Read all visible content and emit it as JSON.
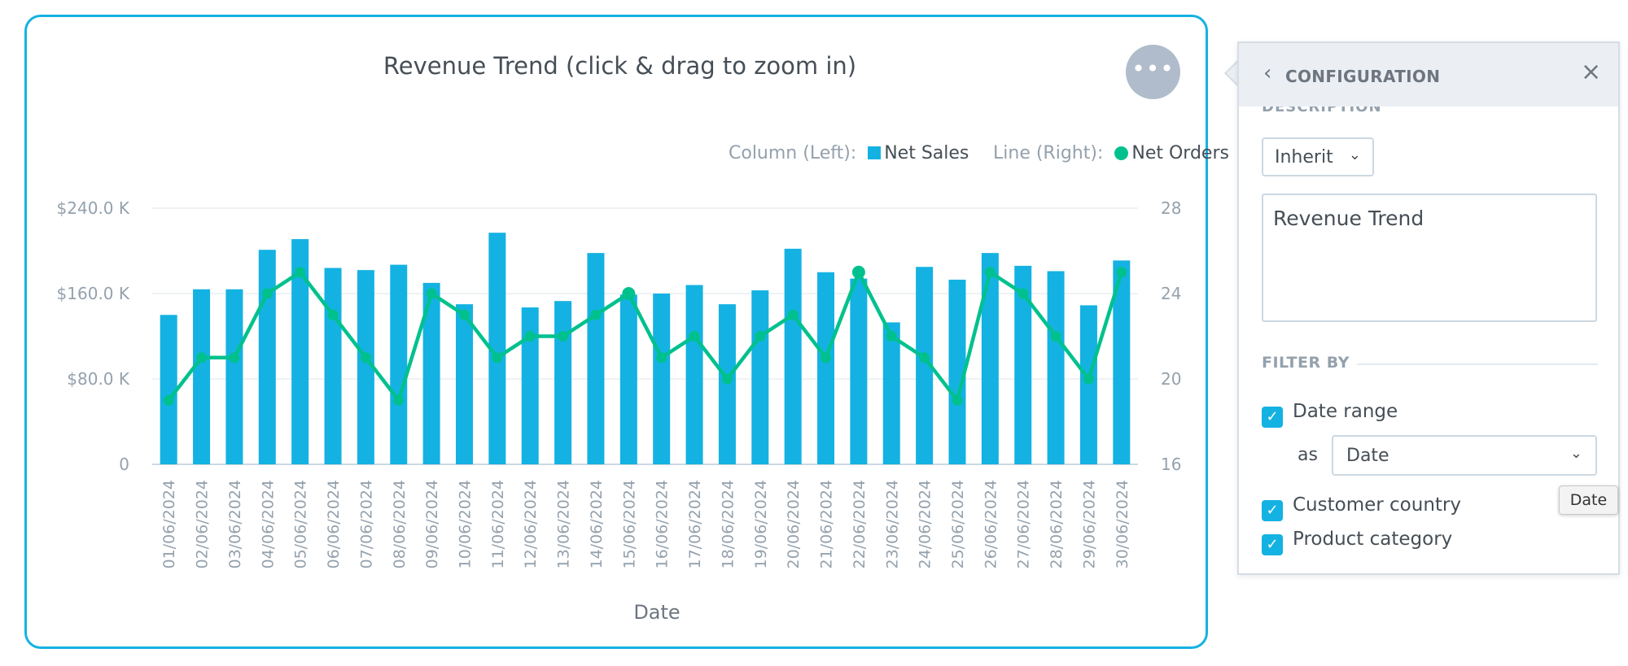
{
  "widget": {
    "title": "Revenue Trend (click & drag to zoom in)",
    "menu_icon": "ellipsis-icon",
    "legend": {
      "column_label": "Column (Left):",
      "column_series": "Net Sales",
      "line_label": "Line (Right):",
      "line_series": "Net Orders"
    },
    "colors": {
      "bar": "#14b2e2",
      "line": "#00c18d",
      "border": "#14b2e2"
    }
  },
  "chart_data": {
    "type": "bar+line",
    "title": "Revenue Trend (click & drag to zoom in)",
    "xlabel": "Date",
    "ylabel_left": "Net Sales",
    "ylabel_right": "Net Orders",
    "categories": [
      "01/06/2024",
      "02/06/2024",
      "03/06/2024",
      "04/06/2024",
      "05/06/2024",
      "06/06/2024",
      "07/06/2024",
      "08/06/2024",
      "09/06/2024",
      "10/06/2024",
      "11/06/2024",
      "12/06/2024",
      "13/06/2024",
      "14/06/2024",
      "15/06/2024",
      "16/06/2024",
      "17/06/2024",
      "18/06/2024",
      "19/06/2024",
      "20/06/2024",
      "21/06/2024",
      "22/06/2024",
      "23/06/2024",
      "24/06/2024",
      "25/06/2024",
      "26/06/2024",
      "27/06/2024",
      "28/06/2024",
      "29/06/2024",
      "30/06/2024"
    ],
    "series": [
      {
        "name": "Net Sales",
        "type": "column",
        "axis": "left",
        "values": [
          140000,
          164000,
          164000,
          201000,
          211000,
          184000,
          182000,
          187000,
          170000,
          150000,
          217000,
          147000,
          153000,
          198000,
          159000,
          160000,
          168000,
          150000,
          163000,
          202000,
          180000,
          174000,
          133000,
          185000,
          173000,
          198000,
          186000,
          181000,
          149000,
          191000
        ]
      },
      {
        "name": "Net Orders",
        "type": "line",
        "axis": "right",
        "values": [
          19,
          21,
          21,
          24,
          25,
          23,
          21,
          19,
          24,
          23,
          21,
          22,
          22,
          23,
          24,
          21,
          22,
          20,
          22,
          23,
          21,
          25,
          22,
          21,
          19,
          25,
          24,
          22,
          20,
          25
        ]
      }
    ],
    "y_left": {
      "min": 0,
      "max": 240000,
      "ticks": [
        {
          "value": 0,
          "label": "0"
        },
        {
          "value": 80000,
          "label": "$80.0 K"
        },
        {
          "value": 160000,
          "label": "$160.0 K"
        },
        {
          "value": 240000,
          "label": "$240.0 K"
        }
      ]
    },
    "y_right": {
      "min": 16,
      "max": 28,
      "ticks": [
        {
          "value": 16,
          "label": "16"
        },
        {
          "value": 20,
          "label": "20"
        },
        {
          "value": 24,
          "label": "24"
        },
        {
          "value": 28,
          "label": "28"
        }
      ]
    },
    "highlighted_points": [
      14,
      21
    ],
    "legend_position": "top-right",
    "grid": true
  },
  "config": {
    "back_icon": "chevron-left-icon",
    "title": "CONFIGURATION",
    "close_icon": "close-icon",
    "description_heading": "DESCRIPTION",
    "inherit_label": "Inherit",
    "description_text": "Revenue Trend",
    "filter_heading": "FILTER BY",
    "filters": [
      {
        "label": "Date range",
        "checked": true
      },
      {
        "label": "Customer country",
        "checked": true
      },
      {
        "label": "Product category",
        "checked": true
      }
    ],
    "as_label": "as",
    "date_select_value": "Date",
    "tooltip": "Date"
  }
}
